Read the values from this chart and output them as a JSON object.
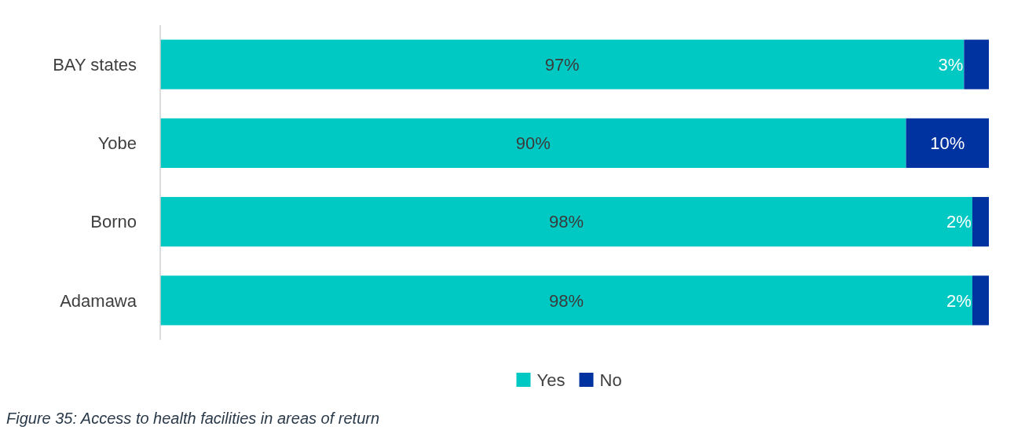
{
  "chart_data": {
    "type": "bar",
    "orientation": "horizontal",
    "stacked": true,
    "categories": [
      "BAY states",
      "Yobe",
      "Borno",
      "Adamawa"
    ],
    "series": [
      {
        "name": "Yes",
        "color": "#00c9c4",
        "values": [
          97,
          90,
          98,
          98
        ],
        "value_labels": [
          "97%",
          "90%",
          "98%",
          "98%"
        ]
      },
      {
        "name": "No",
        "color": "#0033a0",
        "values": [
          3,
          10,
          2,
          2
        ],
        "value_labels": [
          "3%",
          "10%",
          "2%",
          "2%"
        ]
      }
    ],
    "xlim": [
      0,
      100
    ],
    "tick_labels": "y",
    "legend": "bottom",
    "annotations": [
      "Figure 35: Access to health facilities in areas of return"
    ]
  }
}
